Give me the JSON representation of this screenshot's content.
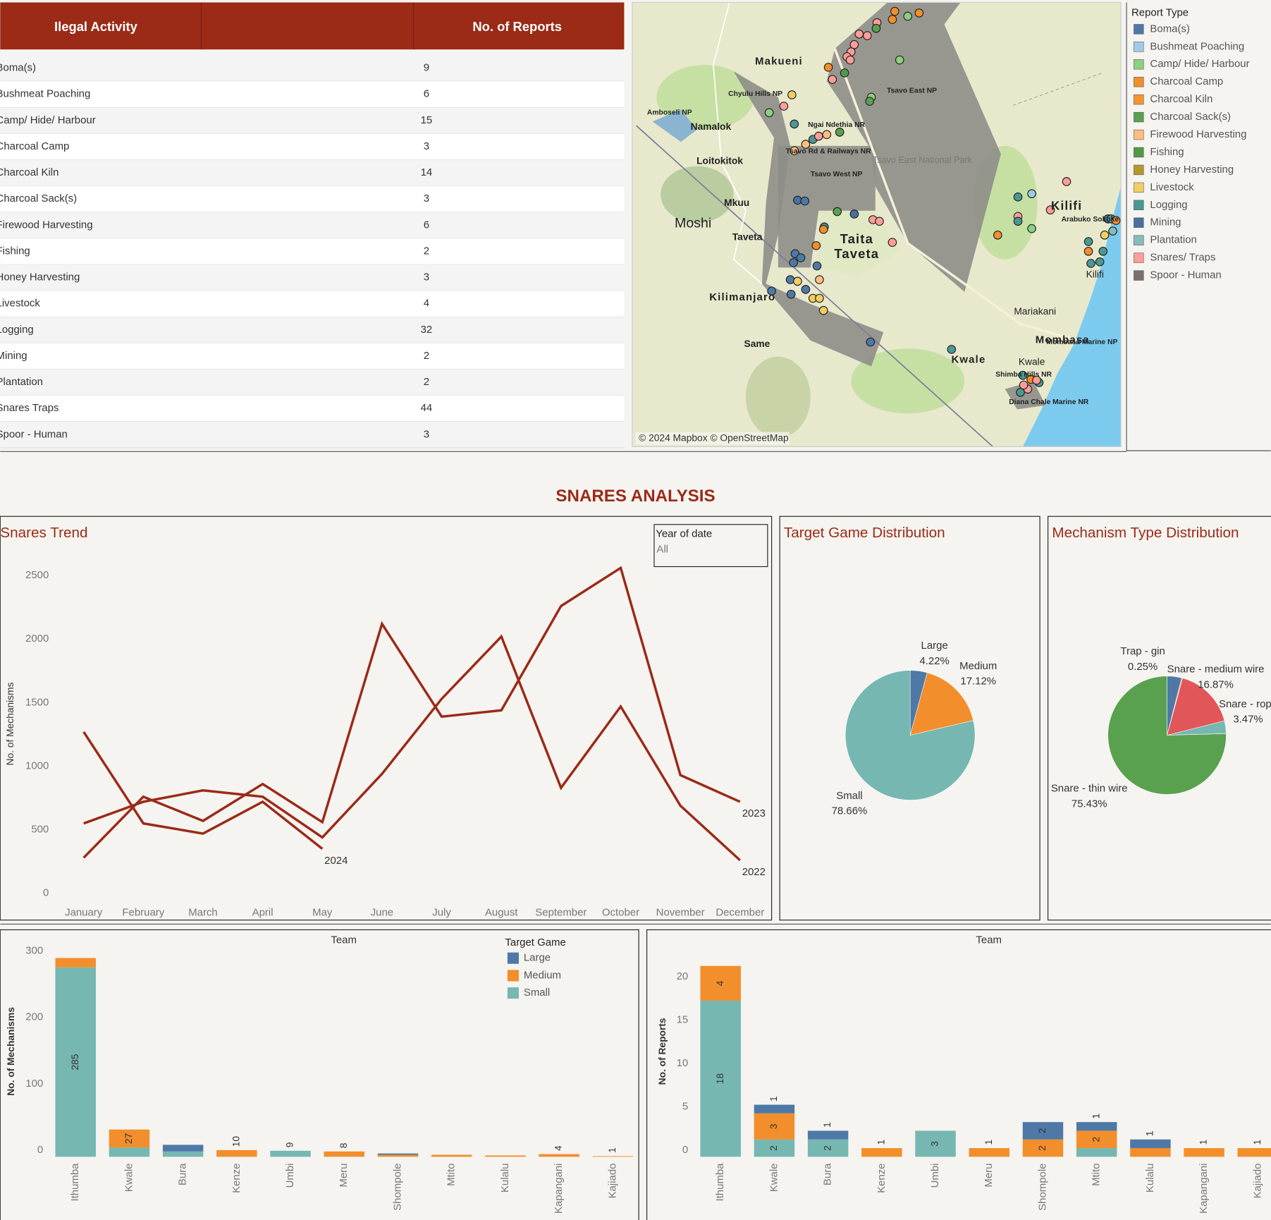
{
  "table": {
    "columns": [
      "Ilegal Activity",
      "No. of Reports"
    ],
    "rows": [
      [
        "Boma(s)",
        9
      ],
      [
        "Bushmeat Poaching",
        6
      ],
      [
        "Camp/ Hide/ Harbour",
        15
      ],
      [
        "Charcoal Camp",
        3
      ],
      [
        "Charcoal Kiln",
        14
      ],
      [
        "Charcoal Sack(s)",
        3
      ],
      [
        "Firewood Harvesting",
        6
      ],
      [
        "Fishing",
        2
      ],
      [
        "Honey Harvesting",
        3
      ],
      [
        "Livestock",
        4
      ],
      [
        "Logging",
        32
      ],
      [
        "Mining",
        2
      ],
      [
        "Plantation",
        2
      ],
      [
        "Snares Traps",
        44
      ],
      [
        "Spoor - Human",
        3
      ]
    ]
  },
  "map": {
    "labels": [
      "Makueni",
      "Chyulu Hills NP",
      "Amboseli NP",
      "Namalok",
      "Loitokitok",
      "Moshi",
      "Mkuu",
      "Taveta",
      "Kilimanjaro",
      "Same",
      "Taita",
      "Taveta",
      "Tsavo East NP",
      "Tsavo East National Park",
      "Tsavo West NP",
      "Ngai Ndethia NR",
      "Tsavo Rd & Railways NR",
      "Kilifi",
      "Arabuko Sokoke",
      "Kilifi",
      "Mariakani",
      "Mombasa",
      "Mombasa Marine NP",
      "Kwale",
      "Kwale",
      "Shimba Hills NR",
      "Diana Chale Marine NR"
    ],
    "attribution": "© 2024 Mapbox © OpenStreetMap",
    "legend": {
      "title": "Report Type",
      "items": [
        {
          "name": "Boma(s)",
          "color": "#4e79a7"
        },
        {
          "name": "Bushmeat Poaching",
          "color": "#a0cbe8"
        },
        {
          "name": "Camp/ Hide/ Harbour",
          "color": "#8cd17d"
        },
        {
          "name": "Charcoal Camp",
          "color": "#f28e2b"
        },
        {
          "name": "Charcoal Kiln",
          "color": "#f5952f"
        },
        {
          "name": "Charcoal Sack(s)",
          "color": "#59a14f"
        },
        {
          "name": "Firewood Harvesting",
          "color": "#ffbe7d"
        },
        {
          "name": "Fishing",
          "color": "#4f9a47"
        },
        {
          "name": "Honey Harvesting",
          "color": "#b6992d"
        },
        {
          "name": "Livestock",
          "color": "#f1ce63"
        },
        {
          "name": "Logging",
          "color": "#499894"
        },
        {
          "name": "Mining",
          "color": "#4a6fa0"
        },
        {
          "name": "Plantation",
          "color": "#86bcb6"
        },
        {
          "name": "Snares/ Traps",
          "color": "#ff9d9a"
        },
        {
          "name": "Spoor - Human",
          "color": "#79706e"
        }
      ]
    }
  },
  "dashboard": {
    "section_title": "SNARES ANALYSIS"
  },
  "chart_data": [
    {
      "type": "line",
      "title": "Snares Trend",
      "y_label": "No. of Mechanisms",
      "filter": {
        "label": "Year of date",
        "value": "All"
      },
      "categories": [
        "January",
        "February",
        "March",
        "April",
        "May",
        "June",
        "July",
        "August",
        "September",
        "October",
        "November",
        "December"
      ],
      "ylim": [
        0,
        2600
      ],
      "yticks": [
        0,
        500,
        1000,
        1500,
        2000,
        2500
      ],
      "series": [
        {
          "name": "2022",
          "color": "#9b2a17",
          "values": [
            550,
            720,
            810,
            760,
            440,
            940,
            1530,
            2020,
            830,
            1470,
            690,
            260
          ]
        },
        {
          "name": "2023",
          "color": "#9b2a17",
          "values": [
            280,
            760,
            570,
            860,
            560,
            2120,
            1390,
            1440,
            2260,
            2560,
            930,
            720
          ]
        },
        {
          "name": "2024",
          "color": "#9b2a17",
          "values": [
            1270,
            550,
            470,
            720,
            350,
            null,
            null,
            null,
            null,
            null,
            null,
            null
          ]
        }
      ]
    },
    {
      "type": "pie",
      "title": "Target Game Distribution",
      "categories": [
        "Large",
        "Medium",
        "Small"
      ],
      "values": [
        4.22,
        17.12,
        78.66
      ],
      "value_labels": [
        "4.22%",
        "17.12%",
        "78.66%"
      ],
      "colors": [
        "#4e79a7",
        "#f28e2b",
        "#76b7b2"
      ]
    },
    {
      "type": "pie",
      "title": "Mechanism Type Distribution",
      "categories": [
        null,
        "Trap - gin",
        "Snare - medium wire",
        "Snare - rope",
        "Snare - thin wire"
      ],
      "values": [
        3.98,
        0.25,
        16.87,
        3.47,
        75.43
      ],
      "value_labels": [
        null,
        "0.25%",
        "16.87%",
        "3.47%",
        "75.43%"
      ],
      "colors": [
        "#4e79a7",
        "#f28e2b",
        "#e15759",
        "#76b7b2",
        "#59a14f"
      ]
    },
    {
      "type": "stacked_bar",
      "x_label": "Team",
      "y_label": "No. of Mechanisms",
      "legend_title": "Target Game",
      "categories": [
        "Ithumba",
        "Kwale",
        "Bura",
        "Kenze",
        "Umbi",
        "Meru",
        "Shompole",
        "Mtito",
        "Kulalu",
        "Kapangani",
        "Kajiado"
      ],
      "ylim": [
        0,
        310
      ],
      "yticks": [
        0,
        100,
        200,
        300
      ],
      "series": [
        {
          "name": "Large",
          "color": "#4e79a7",
          "values": [
            0,
            0,
            10,
            0,
            0,
            0,
            2,
            0,
            0,
            0,
            0
          ]
        },
        {
          "name": "Medium",
          "color": "#f28e2b",
          "values": [
            14,
            27,
            0,
            10,
            0,
            8,
            3,
            3,
            2,
            4,
            1
          ],
          "value_labels": [
            null,
            "27",
            null,
            "10",
            null,
            "8",
            null,
            null,
            null,
            "4",
            "1"
          ]
        },
        {
          "name": "Small",
          "color": "#76b7b2",
          "values": [
            285,
            14,
            8,
            0,
            9,
            0,
            0,
            0,
            0,
            0,
            0
          ],
          "value_labels": [
            "285",
            null,
            null,
            null,
            "9",
            null,
            null,
            null,
            null,
            null,
            null
          ]
        }
      ]
    },
    {
      "type": "stacked_bar",
      "x_label": "Team",
      "y_label": "No. of Reports",
      "categories": [
        "Ithumba",
        "Kwale",
        "Bura",
        "Kenze",
        "Umbi",
        "Meru",
        "Shompole",
        "Mtito",
        "Kulalu",
        "Kapangani",
        "Kajiado"
      ],
      "ylim": [
        0,
        23
      ],
      "yticks": [
        0,
        5,
        10,
        15,
        20
      ],
      "series": [
        {
          "color": "#4e79a7",
          "values": [
            0,
            1,
            1,
            0,
            0,
            0,
            2,
            1,
            1,
            0,
            0
          ]
        },
        {
          "color": "#f28e2b",
          "values": [
            4,
            3,
            0,
            1,
            0,
            1,
            2,
            2,
            1,
            1,
            1
          ]
        },
        {
          "color": "#76b7b2",
          "values": [
            18,
            2,
            2,
            0,
            3,
            0,
            0,
            1,
            0,
            0,
            0
          ]
        }
      ]
    }
  ]
}
